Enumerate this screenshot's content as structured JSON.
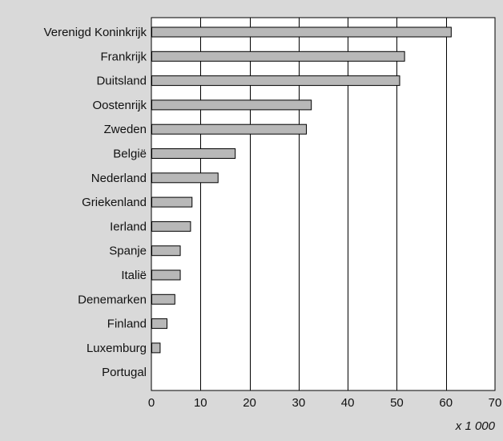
{
  "chart_data": {
    "type": "bar",
    "orientation": "horizontal",
    "categories": [
      "Verenigd Koninkrijk",
      "Frankrijk",
      "Duitsland",
      "Oostenrijk",
      "Zweden",
      "België",
      "Nederland",
      "Griekenland",
      "Ierland",
      "Spanje",
      "Italië",
      "Denemarken",
      "Finland",
      "Luxemburg",
      "Portugal"
    ],
    "values": [
      61,
      51.5,
      50.5,
      32.5,
      31.5,
      17,
      13.5,
      8.2,
      7.9,
      5.8,
      5.8,
      4.7,
      3.1,
      1.7,
      0
    ],
    "xlim": [
      0,
      70
    ],
    "xticks": [
      0,
      10,
      20,
      30,
      40,
      50,
      60,
      70
    ],
    "unit_label": "x 1 000",
    "grid": "vertical",
    "colors": {
      "background": "#d9d9d9",
      "plot_background": "#ffffff",
      "bar_fill": "#b8b8b8",
      "bar_stroke": "#000000",
      "grid": "#000000"
    }
  }
}
